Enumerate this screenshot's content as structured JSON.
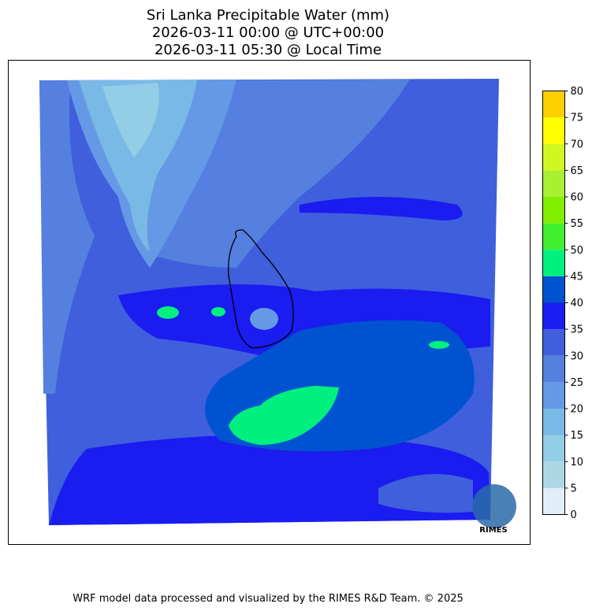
{
  "title": [
    "Sri Lanka Precipitable Water (mm)",
    "2026-03-11 00:00 @ UTC+00:00",
    "2026-03-11 05:30 @ Local Time"
  ],
  "colorbar": {
    "ticks": [
      0,
      5,
      10,
      15,
      20,
      25,
      30,
      35,
      40,
      45,
      50,
      55,
      60,
      65,
      70,
      75,
      80
    ],
    "colors": [
      "#e0eef8",
      "#acd8e6",
      "#93cde6",
      "#7ab9e6",
      "#6599e6",
      "#5580e0",
      "#3f5fdc",
      "#1a1cf0",
      "#0053d0",
      "#00f080",
      "#40f030",
      "#80f000",
      "#a8f030",
      "#d0f820",
      "#ffff00",
      "#ffd000"
    ]
  },
  "logo": "RIMES",
  "footer": "WRF model data processed and visualized by the RIMES R&D Team. © 2025"
}
